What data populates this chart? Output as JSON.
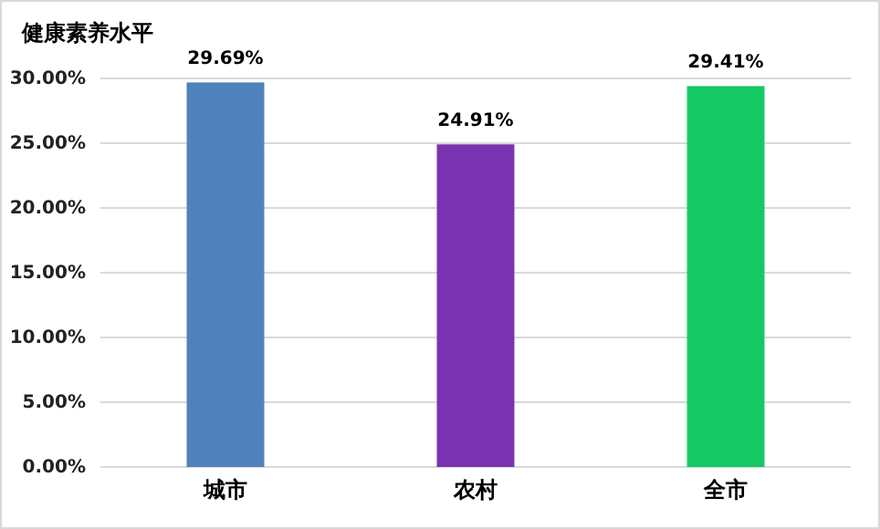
{
  "chart_data": {
    "type": "bar",
    "title": "健康素养水平",
    "categories": [
      "城市",
      "农村",
      "全市"
    ],
    "values": [
      29.69,
      24.91,
      29.41
    ],
    "colors": [
      "#4f81bd",
      "#7a33b0",
      "#14c864"
    ],
    "value_labels": [
      "29.69%",
      "24.91%",
      "29.41%"
    ],
    "ylim": [
      0,
      30
    ],
    "yticks": [
      {
        "value": 0,
        "label": "0.00%"
      },
      {
        "value": 5,
        "label": "5.00%"
      },
      {
        "value": 10,
        "label": "10.00%"
      },
      {
        "value": 15,
        "label": "15.00%"
      },
      {
        "value": 20,
        "label": "20.00%"
      },
      {
        "value": 25,
        "label": "25.00%"
      },
      {
        "value": 30,
        "label": "30.00%"
      }
    ],
    "grid": "y"
  }
}
